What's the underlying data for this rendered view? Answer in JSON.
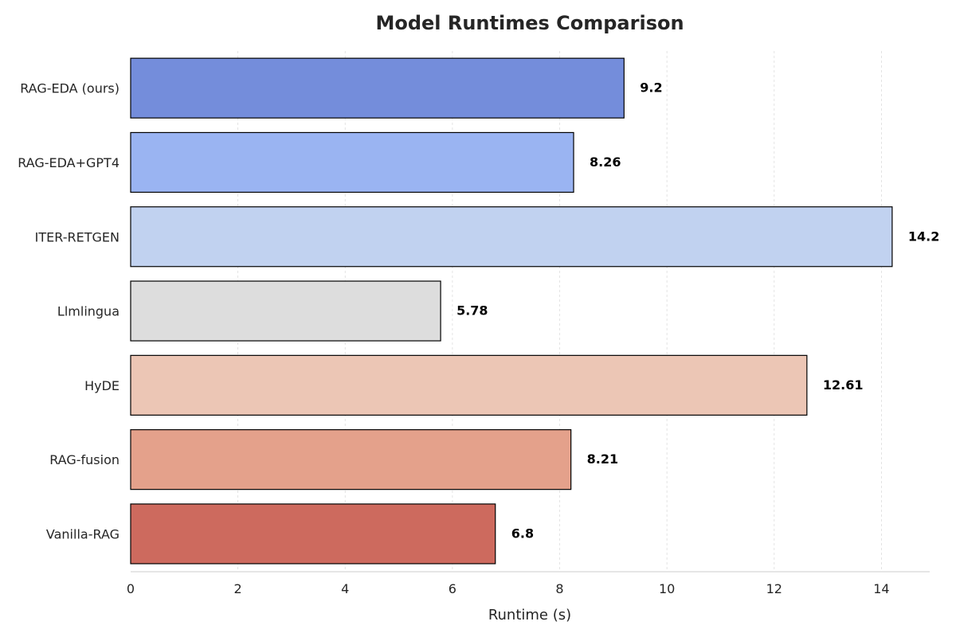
{
  "chart_data": {
    "type": "bar",
    "orientation": "horizontal",
    "title": "Model Runtimes Comparison",
    "xlabel": "Runtime (s)",
    "ylabel": "",
    "xlim": [
      0,
      14.9
    ],
    "x_ticks": [
      0,
      2,
      4,
      6,
      8,
      10,
      12,
      14
    ],
    "grid": "vertical-dashed",
    "categories": [
      "RAG-EDA (ours)",
      "RAG-EDA+GPT4",
      "ITER-RETGEN",
      "Llmlingua",
      "HyDE",
      "RAG-fusion",
      "Vanilla-RAG"
    ],
    "values": [
      9.2,
      8.26,
      14.2,
      5.78,
      12.61,
      8.21,
      6.8
    ],
    "value_labels": [
      "9.2",
      "8.26",
      "14.2",
      "5.78",
      "12.61",
      "8.21",
      "6.8"
    ],
    "colors": [
      "#748ddb",
      "#9ab4f2",
      "#c1d2f0",
      "#dddddd",
      "#ecc6b5",
      "#e4a18b",
      "#cd6a5e"
    ]
  }
}
